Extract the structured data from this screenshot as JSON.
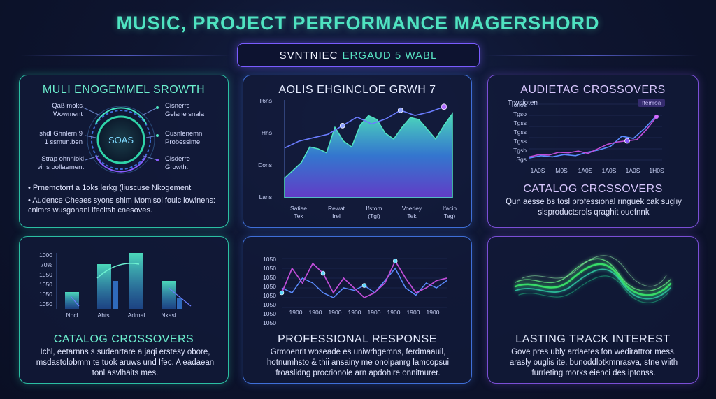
{
  "page": {
    "title": "MUSIC, PROJECT PERFORMANCE MAGERSHORD",
    "subtitle_a": "SVNTNIEC",
    "subtitle_b": "ERGAUD 5 WABL"
  },
  "colors": {
    "teal": "#4fe3c1",
    "blue": "#3f6fd8",
    "purple": "#7b4fd6",
    "green": "#39e36a",
    "magenta": "#c04dd8"
  },
  "panel1": {
    "title": "MULI ENOGEMMEL SROWTH",
    "hub_label": "SOAS",
    "left_labels": [
      "Qaß moks\nWowment",
      "shdl Ghnlern 9\n1 ssmun.ben",
      "Strap ohnnioki\nvir s oollaement"
    ],
    "right_labels": [
      "Cisnerrs\nGelane snala",
      "Cusnlenemn\nProbessime",
      "Cisderre\nGrowth:"
    ],
    "bullets": [
      "Prnemotorrt a 1oks lerkg (liuscuse Nkogement",
      "Audence Cheaes syons shim Momisol foulc lowinens: cnimrs wusgonanl ifecitsh cnesoves."
    ]
  },
  "panel2": {
    "title": "AOLIS EHGINCLOE GRWH 7",
    "x_labels": [
      "Satiae\nTek",
      "Rewat\nIrel",
      "Ifstom\n(Tgi)",
      "Voedey\nTek",
      "Ifacin\nTeg)"
    ]
  },
  "panel3": {
    "title": "AUDIETAG CROSSOVERS",
    "corner_label": "Trwsioten",
    "badge": "Ifeiriioa",
    "title2": "CATALOG CRCSSOVERS",
    "body": "Qun aesse bs tosl professional ringuek cak sugliy slsproductsrols qraghit ouefnnk"
  },
  "panel4": {
    "title": "CATALOG CROSSOVERS",
    "body": "Ichl, eetarnns s sudenrtare a jaqi erstesy obore, msdastolobmm te tuok aruws und Ifec. A eadaean tonl asvlhaits mes."
  },
  "panel5": {
    "title": "PROFESSIONAL RESPONSE",
    "body": "Grmoenrit woseade es uniwrhgemns, ferdmaauil, hotnumhsto & thii ansainy me onolpanrg lamcopsui froaslidng procrionole arn apdohire onnitnurer."
  },
  "panel6": {
    "title": "LASTING TRACK INTEREST",
    "body": "Gove pres ubly ardaetes fon wedirattror mess. arasly ouglis ite, bunoddlotkmnrasva, stne wiith furrleting morks eienci des iptonss."
  },
  "chart_data": [
    {
      "id": "panel2-engagement",
      "type": "area",
      "title": "AOLIS EHGINCLOE GRWH 7",
      "y_tick_labels": [
        "T6ns",
        "Hhs",
        "Dons",
        "Lans"
      ],
      "x_tick_labels": [
        "Satiae Tek",
        "Rewat Irel",
        "Ifstom (Tgi)",
        "Voedey Tek",
        "Ifacin Teg)"
      ],
      "ylim": [
        0,
        100
      ],
      "series": [
        {
          "values": [
            20,
            28,
            36,
            52,
            50,
            46,
            72,
            58,
            52,
            74,
            84,
            80,
            66,
            60,
            72,
            82,
            80,
            70,
            60,
            74,
            86
          ]
        },
        {
          "values": [
            58,
            66,
            70,
            74,
            84,
            94,
            86,
            92,
            102,
            96,
            100,
            106
          ]
        }
      ]
    },
    {
      "id": "panel3-crossovers",
      "type": "line",
      "title": "AUDIETAG CROSSOVERS",
      "y_tick_labels": [
        "Tonos",
        "Tgso",
        "Tgss",
        "Tgss",
        "Tgss",
        "Tgsb",
        "Sgs"
      ],
      "x_tick_labels": [
        "1A0S",
        "M0S",
        "1A0S",
        "1A0S",
        "1A0S",
        "1H0S"
      ],
      "ylim": [
        0,
        100
      ],
      "series": [
        {
          "values": [
            8,
            12,
            11,
            16,
            15,
            18,
            14,
            22,
            30,
            34,
            36,
            38,
            56,
            78
          ]
        },
        {
          "values": [
            6,
            10,
            8,
            12,
            10,
            16,
            20,
            26,
            44,
            40,
            58,
            80
          ]
        }
      ]
    },
    {
      "id": "panel4-catalog",
      "type": "bar",
      "title": "CATALOG CROSSOVERS",
      "y_tick_labels": [
        "1000",
        "70%",
        "1050",
        "1050",
        "1050",
        "1050"
      ],
      "x_tick_labels": [
        "Nocl",
        "Ahtsl",
        "Adrnal",
        "Nkasl"
      ],
      "ylim": [
        0,
        100
      ],
      "values": [
        30,
        80,
        100,
        50
      ],
      "secondary_values": [
        0,
        50,
        0,
        20
      ]
    },
    {
      "id": "panel5-response",
      "type": "line",
      "title": "PROFESSIONAL RESPONSE",
      "y_tick_labels": [
        "1050",
        "1050",
        "1050",
        "1050",
        "1050",
        "1050",
        "1050",
        "1050"
      ],
      "x_tick_labels": [
        "1900",
        "1900",
        "1900",
        "1900",
        "1900",
        "1900",
        "1900",
        "1900"
      ],
      "ylim": [
        0,
        100
      ],
      "series": [
        {
          "values": [
            30,
            80,
            50,
            90,
            70,
            30,
            60,
            40,
            20,
            30,
            50,
            95,
            60,
            30,
            40,
            55,
            60
          ]
        },
        {
          "values": [
            40,
            30,
            60,
            50,
            30,
            20,
            40,
            35,
            45,
            30,
            55,
            80,
            40,
            25,
            50,
            40,
            55
          ]
        }
      ]
    }
  ]
}
